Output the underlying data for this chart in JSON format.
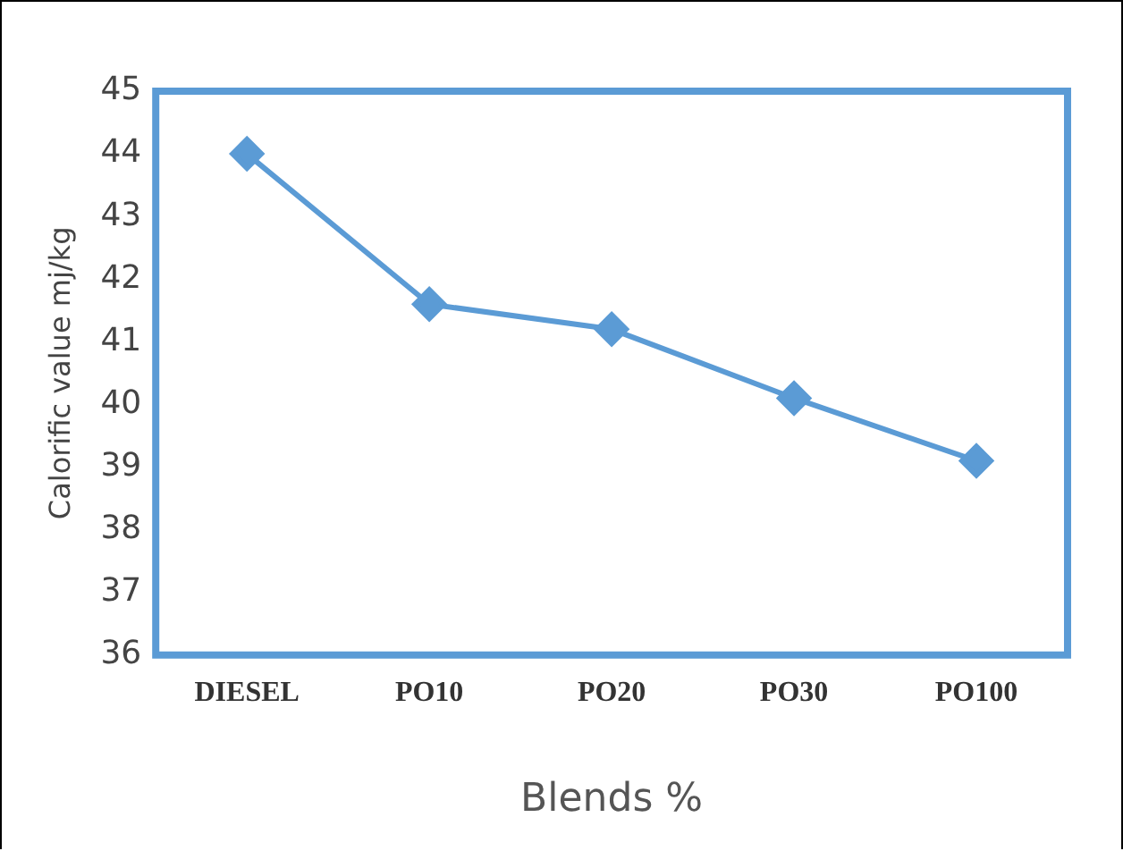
{
  "chart_data": {
    "type": "line",
    "xlabel": "Blends %",
    "ylabel": "Calorific value mj/kg",
    "categories": [
      "DIESEL",
      "PO10",
      "PO20",
      "PO30",
      "PO100"
    ],
    "series": [
      {
        "color": "#5b9bd5",
        "values": [
          44.0,
          41.6,
          41.2,
          40.1,
          39.1
        ]
      }
    ],
    "ylim": [
      36,
      45
    ],
    "yticks": [
      36,
      37,
      38,
      39,
      40,
      41,
      42,
      43,
      44,
      45
    ],
    "grid": false,
    "legend": false,
    "marker": "diamond",
    "line_style": "solid"
  }
}
